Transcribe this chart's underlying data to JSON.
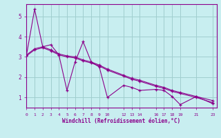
{
  "xlabel": "Windchill (Refroidissement éolien,°C)",
  "bg_color": "#c8eef0",
  "line_color": "#8b008b",
  "grid_color": "#a0cece",
  "line1_x": [
    0,
    1,
    2,
    3,
    4,
    5,
    6,
    7,
    8,
    9,
    10,
    12,
    13,
    14,
    16,
    17,
    18,
    19,
    21,
    23
  ],
  "line1_y": [
    3.1,
    5.35,
    3.5,
    3.6,
    3.1,
    1.35,
    2.75,
    3.75,
    2.75,
    2.5,
    1.0,
    1.6,
    1.5,
    1.35,
    1.4,
    1.35,
    1.05,
    0.65,
    1.05,
    0.7
  ],
  "line2_x": [
    0,
    1,
    2,
    3,
    4,
    5,
    6,
    7,
    8,
    9,
    10,
    12,
    13,
    14,
    16,
    17,
    18,
    19,
    21,
    23
  ],
  "line2_y": [
    3.1,
    3.4,
    3.5,
    3.35,
    3.15,
    3.05,
    3.0,
    2.85,
    2.75,
    2.6,
    2.4,
    2.1,
    1.95,
    1.85,
    1.6,
    1.5,
    1.35,
    1.25,
    1.05,
    0.85
  ],
  "line3_x": [
    0,
    1,
    2,
    3,
    4,
    5,
    6,
    7,
    8,
    9,
    10,
    12,
    13,
    14,
    16,
    17,
    18,
    19,
    21,
    23
  ],
  "line3_y": [
    3.05,
    3.35,
    3.45,
    3.3,
    3.1,
    3.0,
    2.95,
    2.8,
    2.7,
    2.55,
    2.35,
    2.05,
    1.9,
    1.8,
    1.55,
    1.45,
    1.3,
    1.2,
    1.0,
    0.75
  ],
  "xtick_vals": [
    0,
    1,
    2,
    3,
    4,
    5,
    6,
    7,
    8,
    9,
    10,
    12,
    13,
    14,
    16,
    17,
    18,
    19,
    21,
    23
  ],
  "ytick_vals": [
    1,
    2,
    3,
    4,
    5
  ],
  "xlim": [
    0,
    23.5
  ],
  "ylim": [
    0.5,
    5.6
  ]
}
